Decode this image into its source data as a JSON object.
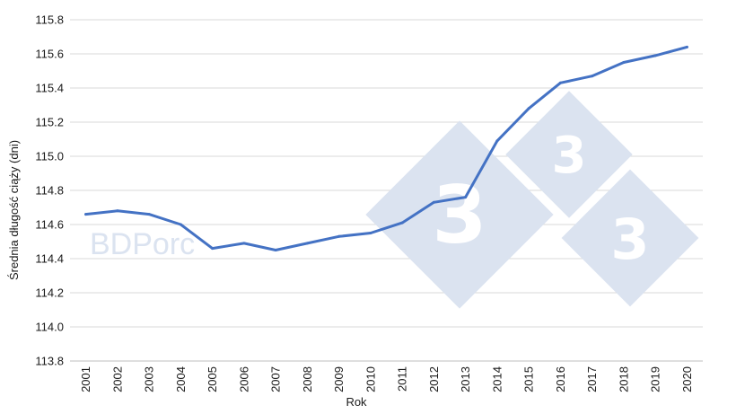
{
  "chart_data": {
    "type": "line",
    "xlabel": "Rok",
    "ylabel": "Średnia długość ciąży (dni)",
    "ylim": [
      113.8,
      115.8
    ],
    "ytick_step": 0.2,
    "grid": true,
    "legend": "none",
    "x": [
      "2001",
      "2002",
      "2003",
      "2004",
      "2005",
      "2006",
      "2007",
      "2008",
      "2009",
      "2010",
      "2011",
      "2012",
      "2013",
      "2014",
      "2015",
      "2016",
      "2017",
      "2018",
      "2019",
      "2020"
    ],
    "series": [
      {
        "color": "#4472c4",
        "values": [
          114.66,
          114.68,
          114.66,
          114.6,
          114.46,
          114.49,
          114.45,
          114.49,
          114.53,
          114.55,
          114.61,
          114.73,
          114.76,
          115.09,
          115.28,
          115.43,
          115.47,
          115.55,
          115.59,
          115.64
        ]
      }
    ]
  },
  "watermark": {
    "brand_text": "BDPorc",
    "digit": "3",
    "color": "#dbe3f0"
  }
}
